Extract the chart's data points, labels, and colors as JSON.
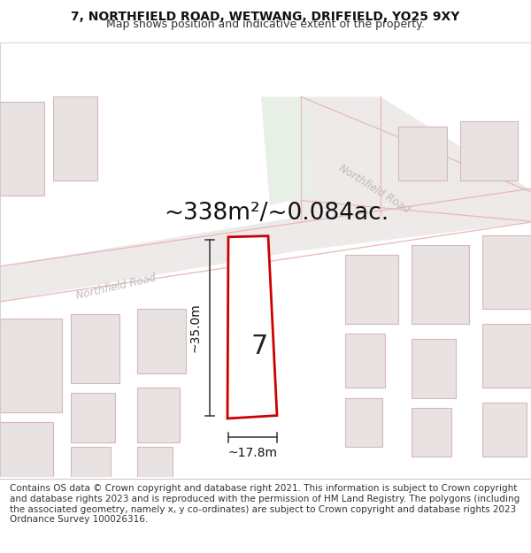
{
  "title_line1": "7, NORTHFIELD ROAD, WETWANG, DRIFFIELD, YO25 9XY",
  "title_line2": "Map shows position and indicative extent of the property.",
  "area_text": "~338m²/~0.084ac.",
  "dim_width": "~17.8m",
  "dim_height": "~35.0m",
  "number_label": "7",
  "footer_text": "Contains OS data © Crown copyright and database right 2021. This information is subject to Crown copyright and database rights 2023 and is reproduced with the permission of HM Land Registry. The polygons (including the associated geometry, namely x, y co-ordinates) are subject to Crown copyright and database rights 2023 Ordnance Survey 100026316.",
  "bg_color": "#ffffff",
  "map_bg": "#faf7f7",
  "road_fill": "#eeeaea",
  "road_line": "#e8b8b8",
  "building_fill": "#e8e2e2",
  "building_line": "#d8b8b8",
  "green_fill": "#e8efe6",
  "road_label_color": "#c0b8b8",
  "highlight_color": "#cc0000",
  "title_fontsize": 10,
  "subtitle_fontsize": 9,
  "area_fontsize": 19,
  "dim_fontsize": 10,
  "number_fontsize": 22,
  "footer_fontsize": 7.5
}
